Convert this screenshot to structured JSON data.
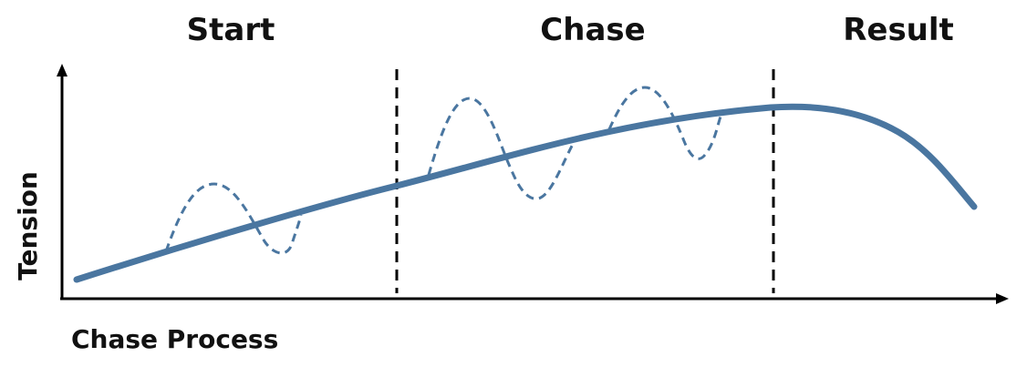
{
  "phases": {
    "start": "Start",
    "chase": "Chase",
    "result": "Result"
  },
  "axes": {
    "y_label": "Tension",
    "x_label": "Chase Process"
  },
  "colors": {
    "curve": "#4a76a0",
    "axis": "#000000",
    "divider": "#000000",
    "text": "#111111"
  },
  "lines": {
    "trend": "solid tension curve",
    "fluctuation": "dashed oscillation",
    "dividers": "dashed vertical phase separators"
  }
}
